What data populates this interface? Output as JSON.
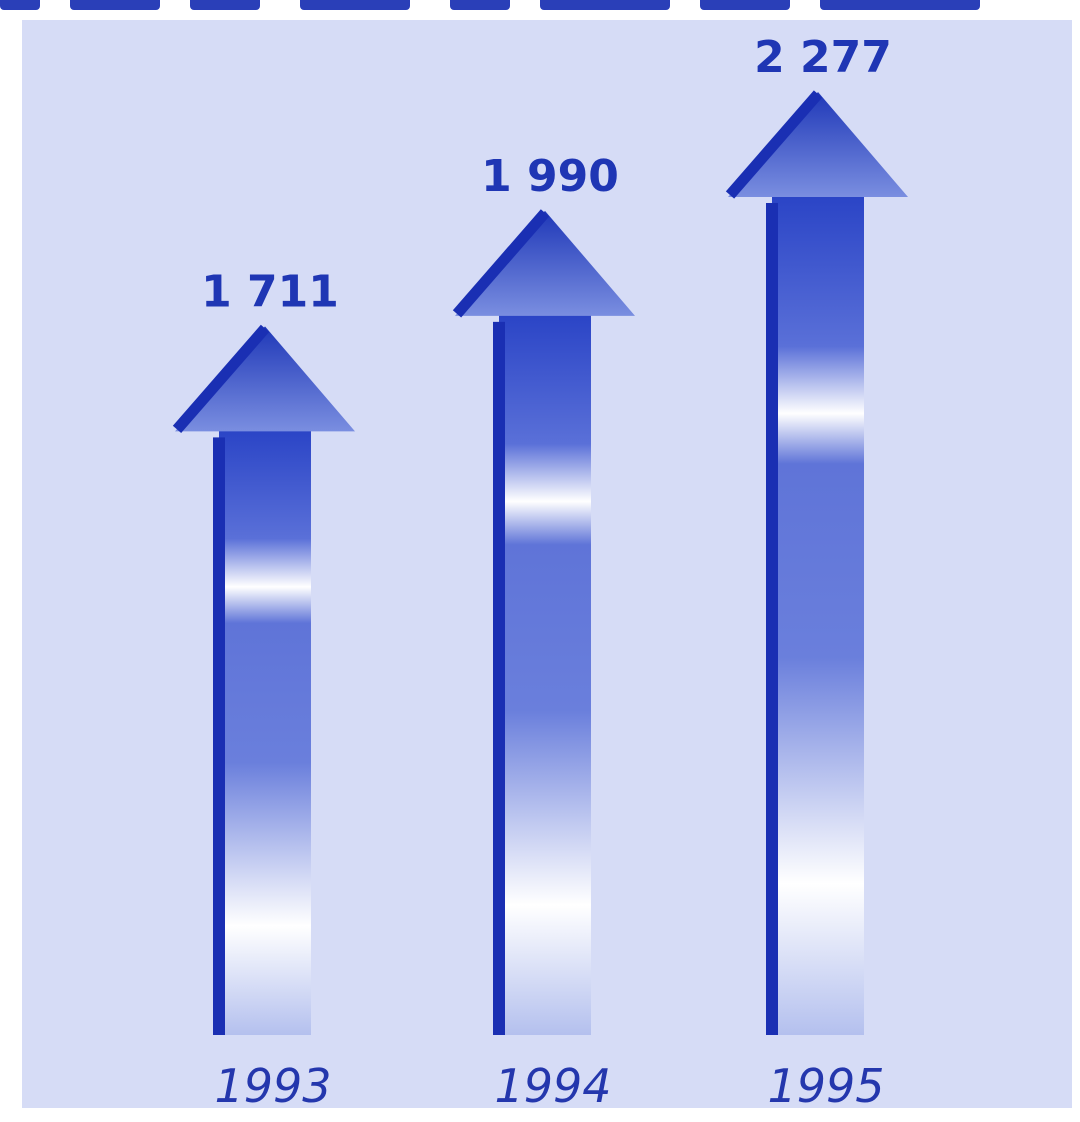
{
  "chart_data": {
    "type": "bar",
    "categories": [
      "1993",
      "1994",
      "1995"
    ],
    "values": [
      1711,
      1990,
      2277
    ],
    "value_labels": [
      "1 711",
      "1 990",
      "2 277"
    ],
    "title": "",
    "xlabel": "",
    "ylabel": "",
    "ylim": [
      0,
      2400
    ],
    "grid": false,
    "legend": "none"
  },
  "colors": {
    "panel_background": "#d6dcf6",
    "arrow_dark": "#1a2fb3",
    "label_text": "#1f36b4",
    "highlight": "#ffffff"
  }
}
